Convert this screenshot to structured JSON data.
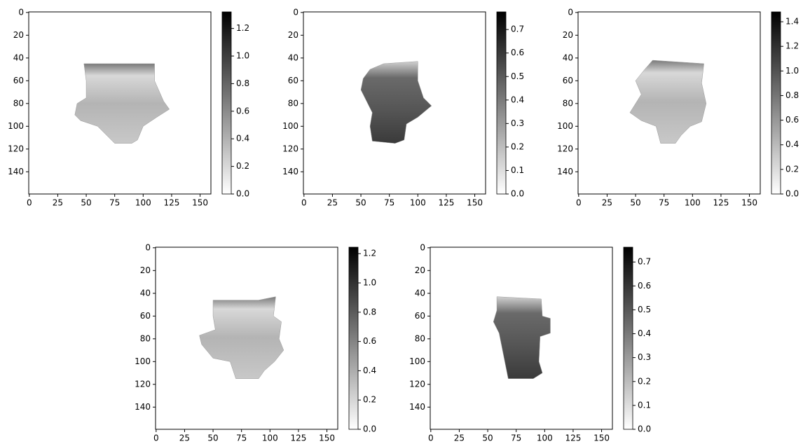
{
  "chart_data": [
    {
      "type": "heatmap",
      "cmap": "Greys",
      "xlim": [
        -0.5,
        159.5
      ],
      "ylim": [
        159.5,
        -0.5
      ],
      "xticks": [
        0,
        25,
        50,
        75,
        100,
        125,
        150
      ],
      "yticks": [
        0,
        20,
        40,
        60,
        80,
        100,
        120,
        140
      ],
      "clim": [
        0,
        1.32
      ],
      "cticks": [
        {
          "value": 0,
          "label": "0.0"
        },
        0.2,
        0.4,
        0.6,
        0.8,
        {
          "value": 1,
          "label": "1.0"
        },
        1.2
      ]
    },
    {
      "type": "heatmap",
      "cmap": "Greys",
      "xlim": [
        -0.5,
        159.5
      ],
      "ylim": [
        159.5,
        -0.5
      ],
      "xticks": [
        0,
        25,
        50,
        75,
        100,
        125,
        150
      ],
      "yticks": [
        0,
        20,
        40,
        60,
        80,
        100,
        120,
        140
      ],
      "clim": [
        0,
        0.775
      ],
      "cticks": [
        {
          "value": 0,
          "label": "0.0"
        },
        0.1,
        0.2,
        0.3,
        0.4,
        0.5,
        0.6,
        0.7
      ]
    },
    {
      "type": "heatmap",
      "cmap": "Greys",
      "xlim": [
        -0.5,
        159.5
      ],
      "ylim": [
        159.5,
        -0.5
      ],
      "xticks": [
        0,
        25,
        50,
        75,
        100,
        125,
        150
      ],
      "yticks": [
        0,
        20,
        40,
        60,
        80,
        100,
        120,
        140
      ],
      "clim": [
        0,
        1.48
      ],
      "cticks": [
        {
          "value": 0,
          "label": "0.0"
        },
        0.2,
        0.4,
        0.6,
        0.8,
        {
          "value": 1,
          "label": "1.0"
        },
        1.2,
        1.4
      ]
    },
    {
      "type": "heatmap",
      "cmap": "Greys",
      "xlim": [
        -0.5,
        159.5
      ],
      "ylim": [
        159.5,
        -0.5
      ],
      "xticks": [
        0,
        25,
        50,
        75,
        100,
        125,
        150
      ],
      "yticks": [
        0,
        20,
        40,
        60,
        80,
        100,
        120,
        140
      ],
      "clim": [
        0,
        1.244
      ],
      "cticks": [
        {
          "value": 0,
          "label": "0.0"
        },
        0.2,
        0.4,
        0.6,
        0.8,
        {
          "value": 1,
          "label": "1.0"
        },
        1.2
      ]
    },
    {
      "type": "heatmap",
      "cmap": "Greys",
      "xlim": [
        -0.5,
        159.5
      ],
      "ylim": [
        159.5,
        -0.5
      ],
      "xticks": [
        0,
        25,
        50,
        75,
        100,
        125,
        150
      ],
      "yticks": [
        0,
        20,
        40,
        60,
        80,
        100,
        120,
        140
      ],
      "clim": [
        0,
        0.762
      ],
      "cticks": [
        {
          "value": 0,
          "label": "0.0"
        },
        0.1,
        0.2,
        0.3,
        0.4,
        0.5,
        0.6,
        0.7
      ]
    }
  ]
}
